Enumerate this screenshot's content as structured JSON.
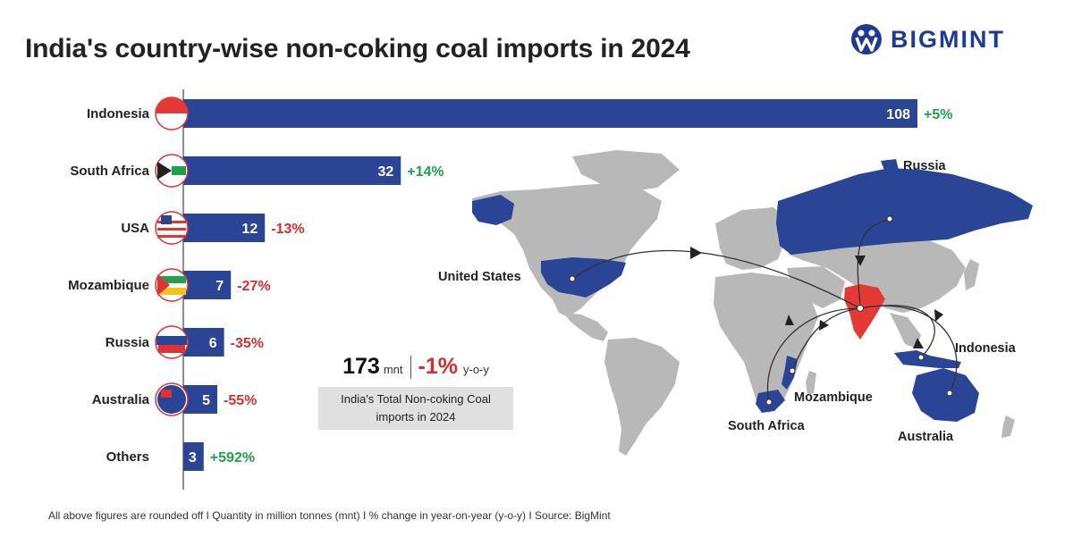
{
  "title": "India's country-wise non-coking coal imports in 2024",
  "brand": "BIGMINT",
  "chart_data": {
    "type": "bar",
    "orientation": "horizontal",
    "categories": [
      "Indonesia",
      "South Africa",
      "USA",
      "Mozambique",
      "Russia",
      "Australia",
      "Others"
    ],
    "values": [
      108,
      32,
      12,
      7,
      6,
      5,
      3
    ],
    "changes": [
      "+5%",
      "+14%",
      "-13%",
      "-27%",
      "-35%",
      "-55%",
      "+592%"
    ],
    "bar_color": "#2b4596",
    "positive_color": "#1fa24a",
    "negative_color": "#d32f2f"
  },
  "summary": {
    "total": "173",
    "unit": "mnt",
    "change": "-1%",
    "change_suffix": "y-o-y",
    "description": "India's Total Non-coking Coal imports in 2024"
  },
  "map": {
    "labels": [
      "Russia",
      "United States",
      "Indonesia",
      "Mozambique",
      "South Africa",
      "Australia"
    ],
    "highlight_color": "#2b4596",
    "india_color": "#e53935",
    "land_color": "#b8b8b8"
  },
  "footer": "All above figures are rounded off  I  Quantity in million tonnes (mnt)  I  % change in year-on-year (y-o-y)  I  Source: BigMint"
}
